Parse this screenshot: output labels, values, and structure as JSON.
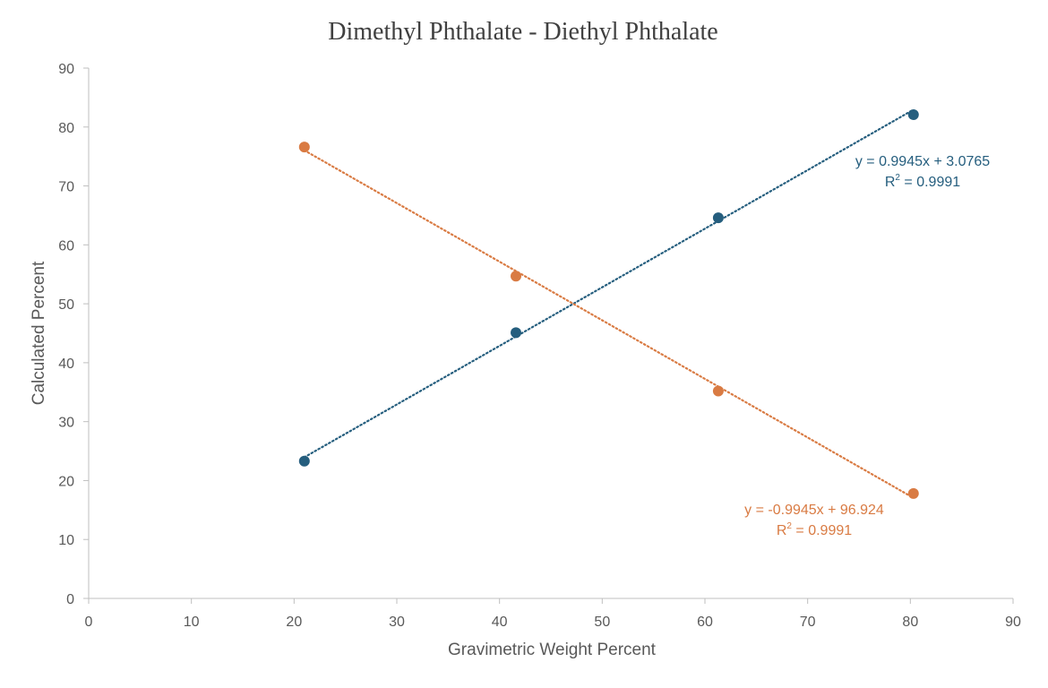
{
  "chart_data": {
    "type": "scatter",
    "title": "Dimethyl Phthalate - Diethyl Phthalate",
    "xlabel": "Gravimetric Weight Percent",
    "ylabel": "Calculated Percent",
    "xlim": [
      0,
      90
    ],
    "ylim": [
      0,
      90
    ],
    "xticks": [
      0,
      10,
      20,
      30,
      40,
      50,
      60,
      70,
      80,
      90
    ],
    "yticks": [
      0,
      10,
      20,
      30,
      40,
      50,
      60,
      70,
      80,
      90
    ],
    "grid": false,
    "series": [
      {
        "name": "Dimethyl Phthalate",
        "color": "#255e7e",
        "x": [
          21.0,
          41.6,
          61.3,
          80.3
        ],
        "y": [
          23.3,
          45.1,
          64.6,
          82.1
        ],
        "trendline": {
          "type": "linear",
          "slope": 0.9945,
          "intercept": 3.0765,
          "x_range": [
            21.0,
            80.3
          ],
          "equation": "y = 0.9945x + 3.0765",
          "r2_label": "R",
          "r2_value": " = 0.9991"
        }
      },
      {
        "name": "Diethyl Phthalate",
        "color": "#d97b43",
        "x": [
          21.0,
          41.6,
          61.3,
          80.3
        ],
        "y": [
          76.6,
          54.7,
          35.2,
          17.8
        ],
        "trendline": {
          "type": "linear",
          "slope": -0.9945,
          "intercept": 96.924,
          "x_range": [
            21.0,
            80.3
          ],
          "equation": "y = -0.9945x + 96.924",
          "r2_label": "R",
          "r2_value": " = 0.9991"
        }
      }
    ],
    "superscript": "2"
  }
}
